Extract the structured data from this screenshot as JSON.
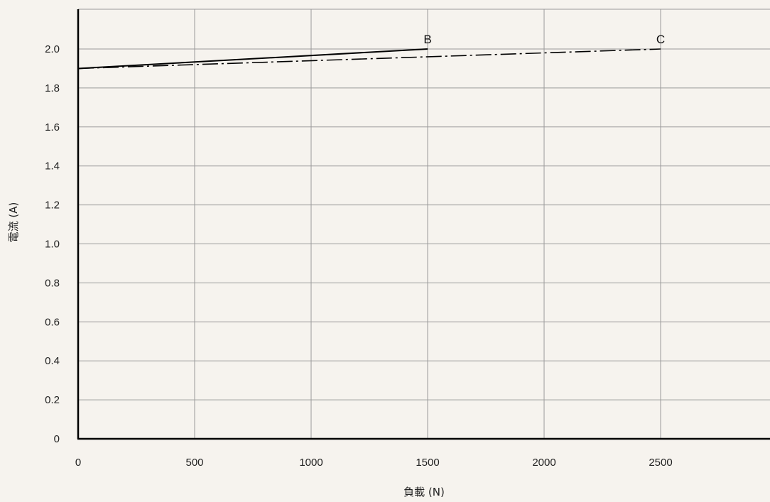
{
  "chart_data": {
    "type": "line",
    "title": "",
    "xlabel": "負載 (N)",
    "ylabel": "電流 (A)",
    "xlim": [
      0,
      3000
    ],
    "ylim": [
      0,
      2.2
    ],
    "xticks": [
      0,
      500,
      1000,
      1500,
      2000,
      2500
    ],
    "yticks": [
      0,
      0.2,
      0.4,
      0.6,
      0.8,
      1.0,
      1.2,
      1.4,
      1.6,
      1.8,
      2.0
    ],
    "xtick_labels": [
      "0",
      "500",
      "1000",
      "1500",
      "2000",
      "2500"
    ],
    "ytick_labels": [
      "0",
      "0.2",
      "0.4",
      "0.6",
      "0.8",
      "1.0",
      "1.2",
      "1.4",
      "1.6",
      "1.8",
      "2.0"
    ],
    "grid": true,
    "series": [
      {
        "label": "B",
        "style": "solid",
        "color": "#000000",
        "x": [
          0,
          1500
        ],
        "y": [
          1.9,
          2.0
        ]
      },
      {
        "label": "C",
        "style": "dashdot",
        "color": "#000000",
        "x": [
          0,
          2500
        ],
        "y": [
          1.9,
          2.0
        ]
      }
    ]
  },
  "colors": {
    "background": "#f6f3ee",
    "grid": "#9a9a9a",
    "axis": "#000000"
  }
}
